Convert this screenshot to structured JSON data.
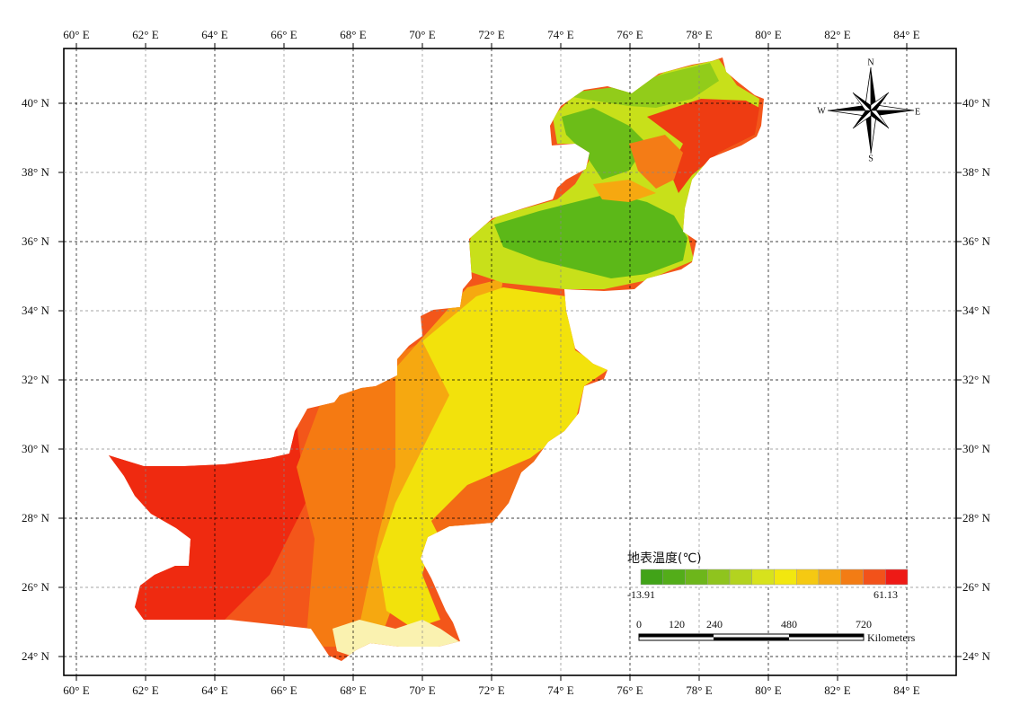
{
  "map": {
    "longitude_ticks": [
      "60° E",
      "62° E",
      "64° E",
      "66° E",
      "68° E",
      "70° E",
      "72° E",
      "74° E",
      "76° E",
      "78° E",
      "80° E",
      "82° E",
      "84° E"
    ],
    "latitude_ticks": [
      "40° N",
      "38° N",
      "36° N",
      "34° N",
      "32° N",
      "30° N",
      "28° N",
      "26° N",
      "24° N"
    ],
    "region_colors": {
      "hot_red": "#ef2a10",
      "orange_red": "#f04a14",
      "orange": "#f57a12",
      "amber": "#f6a810",
      "yellow": "#f2e20c",
      "yellow_green": "#c8e01a",
      "light_green": "#92cc1a",
      "green": "#5cb818",
      "pale": "#faf2b0"
    }
  },
  "legend": {
    "title": "地表温度(℃)",
    "min_label": "-13.91",
    "max_label": "61.13",
    "colors": [
      "#41a318",
      "#53ad19",
      "#6db61b",
      "#8fc41e",
      "#b3d31f",
      "#d7e21c",
      "#f2e70f",
      "#f5c912",
      "#f4a714",
      "#f37c14",
      "#f2521a",
      "#ee1a16"
    ]
  },
  "scale_bar": {
    "labels": [
      "0",
      "120",
      "240",
      "480",
      "720"
    ],
    "unit": "Kilometers"
  },
  "north_arrow": {
    "icon": "compass-rose-icon",
    "n": "N",
    "s": "S",
    "e": "E",
    "w": "W"
  }
}
